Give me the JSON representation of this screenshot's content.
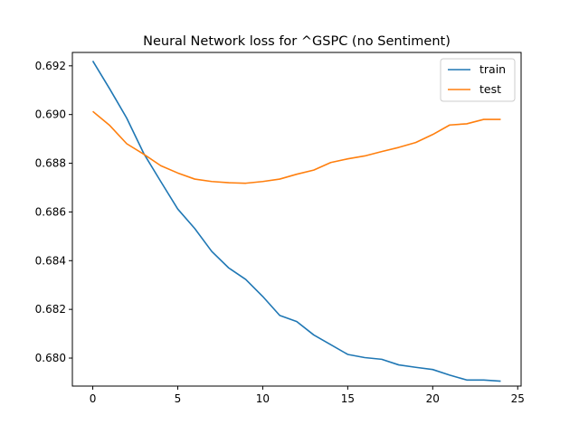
{
  "chart_data": {
    "type": "line",
    "title": "Neural Network loss for ^GSPC (no Sentiment)",
    "xlabel": "",
    "ylabel": "",
    "xlim": [
      -1.2,
      25.2
    ],
    "ylim": [
      0.67885,
      0.69255
    ],
    "x_ticks": [
      0,
      5,
      10,
      15,
      20,
      25
    ],
    "y_ticks": [
      0.68,
      0.682,
      0.684,
      0.686,
      0.688,
      0.69,
      0.692
    ],
    "x_tick_labels": [
      "0",
      "5",
      "10",
      "15",
      "20",
      "25"
    ],
    "y_tick_labels": [
      "0.680",
      "0.682",
      "0.684",
      "0.686",
      "0.688",
      "0.690",
      "0.692"
    ],
    "grid": false,
    "legend_position": "top-right",
    "x": [
      0,
      1,
      2,
      3,
      4,
      5,
      6,
      7,
      8,
      9,
      10,
      11,
      12,
      13,
      14,
      15,
      16,
      17,
      18,
      19,
      20,
      21,
      22,
      23,
      24
    ],
    "series": [
      {
        "name": "train",
        "color": "#1f77b4",
        "values": [
          0.6922,
          0.69105,
          0.68985,
          0.6884,
          0.68725,
          0.68612,
          0.68532,
          0.68438,
          0.6837,
          0.68323,
          0.68253,
          0.68175,
          0.6815,
          0.68095,
          0.68055,
          0.68015,
          0.68002,
          0.67995,
          0.67972,
          0.67962,
          0.67953,
          0.6793,
          0.6791,
          0.6791,
          0.67905
        ]
      },
      {
        "name": "test",
        "color": "#ff7f0e",
        "values": [
          0.69013,
          0.68955,
          0.6888,
          0.68837,
          0.6879,
          0.6876,
          0.68735,
          0.68725,
          0.6872,
          0.68718,
          0.68725,
          0.68735,
          0.68755,
          0.68772,
          0.68803,
          0.68818,
          0.6883,
          0.68848,
          0.68865,
          0.68885,
          0.68918,
          0.68957,
          0.68962,
          0.6898,
          0.6898
        ]
      }
    ]
  }
}
